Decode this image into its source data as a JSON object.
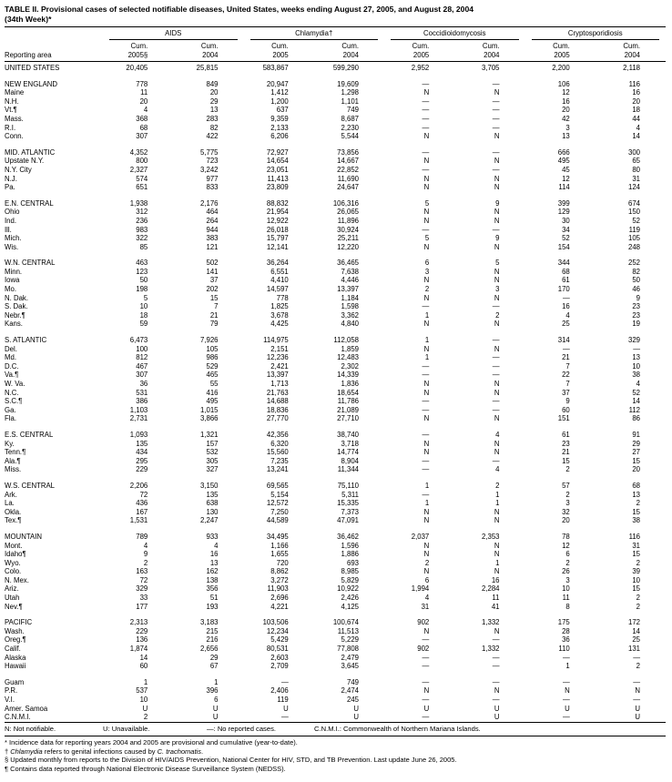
{
  "title": {
    "line1": "TABLE II. Provisional cases of selected notifiable diseases, United States, weeks ending August 27, 2005, and August 28, 2004",
    "line2": "(34th Week)*"
  },
  "table": {
    "corner_label": "Reporting area",
    "disease_groups": [
      "AIDS",
      "Chlamydia†",
      "Coccidioidomycosis",
      "Cryptosporidiosis"
    ],
    "sub": [
      {
        "l1": "Cum.",
        "l2": "2005§"
      },
      {
        "l1": "Cum.",
        "l2": "2004"
      },
      {
        "l1": "Cum.",
        "l2": "2005"
      },
      {
        "l1": "Cum.",
        "l2": "2004"
      },
      {
        "l1": "Cum.",
        "l2": "2005"
      },
      {
        "l1": "Cum.",
        "l2": "2004"
      },
      {
        "l1": "Cum.",
        "l2": "2005"
      },
      {
        "l1": "Cum.",
        "l2": "2004"
      }
    ],
    "groups": [
      {
        "rows": [
          {
            "area": "UNITED STATES",
            "values": [
              "20,405",
              "25,815",
              "583,867",
              "599,290",
              "2,952",
              "3,705",
              "2,200",
              "2,118"
            ]
          }
        ]
      },
      {
        "rows": [
          {
            "area": "NEW ENGLAND",
            "values": [
              "778",
              "849",
              "20,947",
              "19,609",
              "—",
              "—",
              "106",
              "116"
            ]
          },
          {
            "area": "Maine",
            "values": [
              "11",
              "20",
              "1,412",
              "1,298",
              "N",
              "N",
              "12",
              "16"
            ]
          },
          {
            "area": "N.H.",
            "values": [
              "20",
              "29",
              "1,200",
              "1,101",
              "—",
              "—",
              "16",
              "20"
            ]
          },
          {
            "area": "Vt.¶",
            "values": [
              "4",
              "13",
              "637",
              "749",
              "—",
              "—",
              "20",
              "18"
            ]
          },
          {
            "area": "Mass.",
            "values": [
              "368",
              "283",
              "9,359",
              "8,687",
              "—",
              "—",
              "42",
              "44"
            ]
          },
          {
            "area": "R.I.",
            "values": [
              "68",
              "82",
              "2,133",
              "2,230",
              "—",
              "—",
              "3",
              "4"
            ]
          },
          {
            "area": "Conn.",
            "values": [
              "307",
              "422",
              "6,206",
              "5,544",
              "N",
              "N",
              "13",
              "14"
            ]
          }
        ]
      },
      {
        "rows": [
          {
            "area": "MID. ATLANTIC",
            "values": [
              "4,352",
              "5,775",
              "72,927",
              "73,856",
              "—",
              "—",
              "666",
              "300"
            ]
          },
          {
            "area": "Upstate N.Y.",
            "values": [
              "800",
              "723",
              "14,654",
              "14,667",
              "N",
              "N",
              "495",
              "65"
            ]
          },
          {
            "area": "N.Y. City",
            "values": [
              "2,327",
              "3,242",
              "23,051",
              "22,852",
              "—",
              "—",
              "45",
              "80"
            ]
          },
          {
            "area": "N.J.",
            "values": [
              "574",
              "977",
              "11,413",
              "11,690",
              "N",
              "N",
              "12",
              "31"
            ]
          },
          {
            "area": "Pa.",
            "values": [
              "651",
              "833",
              "23,809",
              "24,647",
              "N",
              "N",
              "114",
              "124"
            ]
          }
        ]
      },
      {
        "rows": [
          {
            "area": "E.N. CENTRAL",
            "values": [
              "1,938",
              "2,176",
              "88,832",
              "106,316",
              "5",
              "9",
              "399",
              "674"
            ]
          },
          {
            "area": "Ohio",
            "values": [
              "312",
              "464",
              "21,954",
              "26,065",
              "N",
              "N",
              "129",
              "150"
            ]
          },
          {
            "area": "Ind.",
            "values": [
              "236",
              "264",
              "12,922",
              "11,896",
              "N",
              "N",
              "30",
              "52"
            ]
          },
          {
            "area": "Ill.",
            "values": [
              "983",
              "944",
              "26,018",
              "30,924",
              "—",
              "—",
              "34",
              "119"
            ]
          },
          {
            "area": "Mich.",
            "values": [
              "322",
              "383",
              "15,797",
              "25,211",
              "5",
              "9",
              "52",
              "105"
            ]
          },
          {
            "area": "Wis.",
            "values": [
              "85",
              "121",
              "12,141",
              "12,220",
              "N",
              "N",
              "154",
              "248"
            ]
          }
        ]
      },
      {
        "rows": [
          {
            "area": "W.N. CENTRAL",
            "values": [
              "463",
              "502",
              "36,264",
              "36,465",
              "6",
              "5",
              "344",
              "252"
            ]
          },
          {
            "area": "Minn.",
            "values": [
              "123",
              "141",
              "6,551",
              "7,638",
              "3",
              "N",
              "68",
              "82"
            ]
          },
          {
            "area": "Iowa",
            "values": [
              "50",
              "37",
              "4,410",
              "4,446",
              "N",
              "N",
              "61",
              "50"
            ]
          },
          {
            "area": "Mo.",
            "values": [
              "198",
              "202",
              "14,597",
              "13,397",
              "2",
              "3",
              "170",
              "46"
            ]
          },
          {
            "area": "N. Dak.",
            "values": [
              "5",
              "15",
              "778",
              "1,184",
              "N",
              "N",
              "—",
              "9"
            ]
          },
          {
            "area": "S. Dak.",
            "values": [
              "10",
              "7",
              "1,825",
              "1,598",
              "—",
              "—",
              "16",
              "23"
            ]
          },
          {
            "area": "Nebr.¶",
            "values": [
              "18",
              "21",
              "3,678",
              "3,362",
              "1",
              "2",
              "4",
              "23"
            ]
          },
          {
            "area": "Kans.",
            "values": [
              "59",
              "79",
              "4,425",
              "4,840",
              "N",
              "N",
              "25",
              "19"
            ]
          }
        ]
      },
      {
        "rows": [
          {
            "area": "S. ATLANTIC",
            "values": [
              "6,473",
              "7,926",
              "114,975",
              "112,058",
              "1",
              "—",
              "314",
              "329"
            ]
          },
          {
            "area": "Del.",
            "values": [
              "100",
              "105",
              "2,151",
              "1,859",
              "N",
              "N",
              "—",
              "—"
            ]
          },
          {
            "area": "Md.",
            "values": [
              "812",
              "986",
              "12,236",
              "12,483",
              "1",
              "—",
              "21",
              "13"
            ]
          },
          {
            "area": "D.C.",
            "values": [
              "467",
              "529",
              "2,421",
              "2,302",
              "—",
              "—",
              "7",
              "10"
            ]
          },
          {
            "area": "Va.¶",
            "values": [
              "307",
              "465",
              "13,397",
              "14,339",
              "—",
              "—",
              "22",
              "38"
            ]
          },
          {
            "area": "W. Va.",
            "values": [
              "36",
              "55",
              "1,713",
              "1,836",
              "N",
              "N",
              "7",
              "4"
            ]
          },
          {
            "area": "N.C.",
            "values": [
              "531",
              "416",
              "21,763",
              "18,654",
              "N",
              "N",
              "37",
              "52"
            ]
          },
          {
            "area": "S.C.¶",
            "values": [
              "386",
              "495",
              "14,688",
              "11,786",
              "—",
              "—",
              "9",
              "14"
            ]
          },
          {
            "area": "Ga.",
            "values": [
              "1,103",
              "1,015",
              "18,836",
              "21,089",
              "—",
              "—",
              "60",
              "112"
            ]
          },
          {
            "area": "Fla.",
            "values": [
              "2,731",
              "3,866",
              "27,770",
              "27,710",
              "N",
              "N",
              "151",
              "86"
            ]
          }
        ]
      },
      {
        "rows": [
          {
            "area": "E.S. CENTRAL",
            "values": [
              "1,093",
              "1,321",
              "42,356",
              "38,740",
              "—",
              "4",
              "61",
              "91"
            ]
          },
          {
            "area": "Ky.",
            "values": [
              "135",
              "157",
              "6,320",
              "3,718",
              "N",
              "N",
              "23",
              "29"
            ]
          },
          {
            "area": "Tenn.¶",
            "values": [
              "434",
              "532",
              "15,560",
              "14,774",
              "N",
              "N",
              "21",
              "27"
            ]
          },
          {
            "area": "Ala.¶",
            "values": [
              "295",
              "305",
              "7,235",
              "8,904",
              "—",
              "—",
              "15",
              "15"
            ]
          },
          {
            "area": "Miss.",
            "values": [
              "229",
              "327",
              "13,241",
              "11,344",
              "—",
              "4",
              "2",
              "20"
            ]
          }
        ]
      },
      {
        "rows": [
          {
            "area": "W.S. CENTRAL",
            "values": [
              "2,206",
              "3,150",
              "69,565",
              "75,110",
              "1",
              "2",
              "57",
              "68"
            ]
          },
          {
            "area": "Ark.",
            "values": [
              "72",
              "135",
              "5,154",
              "5,311",
              "—",
              "1",
              "2",
              "13"
            ]
          },
          {
            "area": "La.",
            "values": [
              "436",
              "638",
              "12,572",
              "15,335",
              "1",
              "1",
              "3",
              "2"
            ]
          },
          {
            "area": "Okla.",
            "values": [
              "167",
              "130",
              "7,250",
              "7,373",
              "N",
              "N",
              "32",
              "15"
            ]
          },
          {
            "area": "Tex.¶",
            "values": [
              "1,531",
              "2,247",
              "44,589",
              "47,091",
              "N",
              "N",
              "20",
              "38"
            ]
          }
        ]
      },
      {
        "rows": [
          {
            "area": "MOUNTAIN",
            "values": [
              "789",
              "933",
              "34,495",
              "36,462",
              "2,037",
              "2,353",
              "78",
              "116"
            ]
          },
          {
            "area": "Mont.",
            "values": [
              "4",
              "4",
              "1,166",
              "1,596",
              "N",
              "N",
              "12",
              "31"
            ]
          },
          {
            "area": "Idaho¶",
            "values": [
              "9",
              "16",
              "1,655",
              "1,886",
              "N",
              "N",
              "6",
              "15"
            ]
          },
          {
            "area": "Wyo.",
            "values": [
              "2",
              "13",
              "720",
              "693",
              "2",
              "1",
              "2",
              "2"
            ]
          },
          {
            "area": "Colo.",
            "values": [
              "163",
              "162",
              "8,862",
              "8,985",
              "N",
              "N",
              "26",
              "39"
            ]
          },
          {
            "area": "N. Mex.",
            "values": [
              "72",
              "138",
              "3,272",
              "5,829",
              "6",
              "16",
              "3",
              "10"
            ]
          },
          {
            "area": "Ariz.",
            "values": [
              "329",
              "356",
              "11,903",
              "10,922",
              "1,994",
              "2,284",
              "10",
              "15"
            ]
          },
          {
            "area": "Utah",
            "values": [
              "33",
              "51",
              "2,696",
              "2,426",
              "4",
              "11",
              "11",
              "2"
            ]
          },
          {
            "area": "Nev.¶",
            "values": [
              "177",
              "193",
              "4,221",
              "4,125",
              "31",
              "41",
              "8",
              "2"
            ]
          }
        ]
      },
      {
        "rows": [
          {
            "area": "PACIFIC",
            "values": [
              "2,313",
              "3,183",
              "103,506",
              "100,674",
              "902",
              "1,332",
              "175",
              "172"
            ]
          },
          {
            "area": "Wash.",
            "values": [
              "229",
              "215",
              "12,234",
              "11,513",
              "N",
              "N",
              "28",
              "14"
            ]
          },
          {
            "area": "Oreg.¶",
            "values": [
              "136",
              "216",
              "5,429",
              "5,229",
              "—",
              "—",
              "36",
              "25"
            ]
          },
          {
            "area": "Calif.",
            "values": [
              "1,874",
              "2,656",
              "80,531",
              "77,808",
              "902",
              "1,332",
              "110",
              "131"
            ]
          },
          {
            "area": "Alaska",
            "values": [
              "14",
              "29",
              "2,603",
              "2,479",
              "—",
              "—",
              "—",
              "—"
            ]
          },
          {
            "area": "Hawaii",
            "values": [
              "60",
              "67",
              "2,709",
              "3,645",
              "—",
              "—",
              "1",
              "2"
            ]
          }
        ]
      },
      {
        "rows": [
          {
            "area": "Guam",
            "values": [
              "1",
              "1",
              "—",
              "749",
              "—",
              "—",
              "—",
              "—"
            ]
          },
          {
            "area": "P.R.",
            "values": [
              "537",
              "396",
              "2,406",
              "2,474",
              "N",
              "N",
              "N",
              "N"
            ]
          },
          {
            "area": "V.I.",
            "values": [
              "10",
              "6",
              "119",
              "245",
              "—",
              "—",
              "—",
              "—"
            ]
          },
          {
            "area": "Amer. Samoa",
            "values": [
              "U",
              "U",
              "U",
              "U",
              "U",
              "U",
              "U",
              "U"
            ]
          },
          {
            "area": "C.N.M.I.",
            "values": [
              "2",
              "U",
              "—",
              "U",
              "—",
              "U",
              "—",
              "U"
            ]
          }
        ]
      }
    ]
  },
  "legend": [
    "N: Not notifiable.",
    "U: Unavailable.",
    "—: No reported cases.",
    "C.N.M.I.: Commonwealth of Northern Mariana Islands."
  ],
  "footnotes": [
    [
      {
        "t": "* Incidence data for reporting years 2004 and 2005 are provisional and cumulative (year-to-date)."
      }
    ],
    [
      {
        "t": "† "
      },
      {
        "t": "Chlamydia",
        "i": true
      },
      {
        "t": " refers to genital infections caused by "
      },
      {
        "t": "C. trachomatis",
        "i": true
      },
      {
        "t": "."
      }
    ],
    [
      {
        "t": "§ Updated monthly from reports to the Division of HIV/AIDS Prevention, National Center for HIV, STD, and TB Prevention. Last update June 26, 2005."
      }
    ],
    [
      {
        "t": "¶ Contains data reported through National Electronic Disease Surveillance System (NEDSS)."
      }
    ]
  ]
}
